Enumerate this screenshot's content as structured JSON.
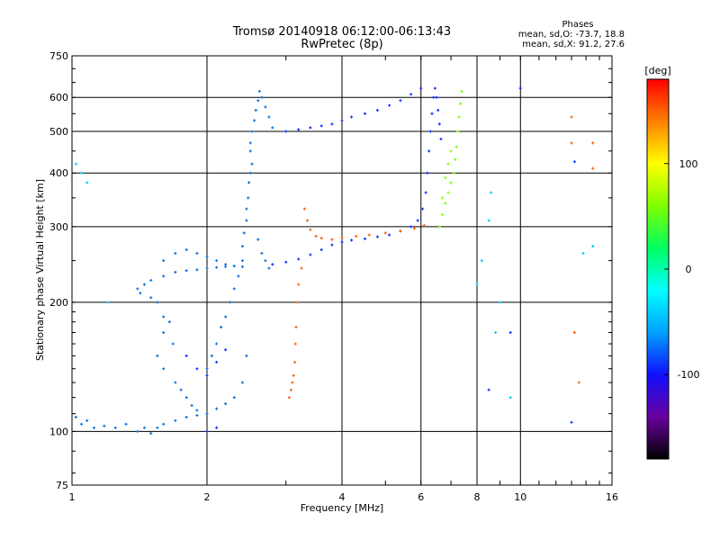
{
  "header": {
    "title_line1": "Tromsø 20140918 06:12:00-06:13:43",
    "title_line2": "RwPretec (8p)",
    "phases_title": "Phases",
    "phases_o": "mean, sd,O: -73.7, 18.8",
    "phases_x": "mean, sd,X:  91.2, 27.6"
  },
  "chart_data": {
    "type": "scatter",
    "title": "Tromsø 20140918 06:12:00-06:13:43",
    "subtitle": "RwPretec (8p)",
    "xlabel": "Frequency [MHz]",
    "ylabel": "Stationary phase Virtual Height [km]",
    "x_scale": "log",
    "y_scale": "log",
    "xlim": [
      1,
      16
    ],
    "ylim": [
      75,
      750
    ],
    "x_ticks": [
      1,
      2,
      4,
      6,
      8,
      10,
      16
    ],
    "x_tick_labels": [
      "1",
      "2",
      "4",
      "6",
      "8",
      "10",
      "16"
    ],
    "y_ticks": [
      75,
      100,
      200,
      300,
      400,
      500,
      600,
      750
    ],
    "y_tick_labels": [
      "75",
      "100",
      "200",
      "300",
      "400",
      "500",
      "600",
      "750"
    ],
    "grid": true,
    "colorbar": {
      "label": "[deg]",
      "range": [
        -180,
        180
      ],
      "ticks": [
        100,
        0,
        -100
      ],
      "tick_labels": [
        "100",
        "0",
        "-100"
      ],
      "colors": [
        "#000000",
        "#6a00a0",
        "#1010ff",
        "#00a0ff",
        "#00ffff",
        "#00ff60",
        "#80ff00",
        "#ffff00",
        "#ff8000",
        "#ff0000"
      ]
    },
    "series": [
      {
        "color": "#0a70e0",
        "points": [
          [
            1.02,
            108
          ],
          [
            1.05,
            104
          ],
          [
            1.08,
            106
          ],
          [
            1.12,
            102
          ],
          [
            1.18,
            103
          ],
          [
            1.25,
            102
          ],
          [
            1.32,
            104
          ],
          [
            1.4,
            100
          ],
          [
            1.45,
            102
          ],
          [
            1.5,
            99
          ],
          [
            1.55,
            102
          ],
          [
            1.6,
            104
          ],
          [
            1.7,
            106
          ],
          [
            1.8,
            108
          ],
          [
            1.9,
            109
          ],
          [
            2.0,
            110
          ],
          [
            2.1,
            113
          ],
          [
            2.2,
            116
          ],
          [
            2.3,
            120
          ],
          [
            2.4,
            130
          ],
          [
            2.45,
            150
          ],
          [
            1.45,
            220
          ],
          [
            1.5,
            225
          ],
          [
            1.6,
            230
          ],
          [
            1.7,
            235
          ],
          [
            1.8,
            237
          ],
          [
            1.9,
            238
          ],
          [
            2.0,
            240
          ],
          [
            2.1,
            241
          ],
          [
            2.2,
            242
          ],
          [
            2.3,
            243
          ],
          [
            2.4,
            242
          ],
          [
            1.4,
            215
          ],
          [
            1.42,
            210
          ],
          [
            1.5,
            205
          ],
          [
            1.55,
            200
          ],
          [
            1.6,
            185
          ],
          [
            1.65,
            180
          ],
          [
            1.6,
            170
          ],
          [
            1.68,
            160
          ],
          [
            1.55,
            150
          ],
          [
            1.6,
            140
          ],
          [
            1.7,
            130
          ],
          [
            1.75,
            125
          ],
          [
            1.8,
            120
          ],
          [
            1.85,
            115
          ],
          [
            1.9,
            112
          ],
          [
            2.0,
            140
          ],
          [
            2.05,
            150
          ],
          [
            2.1,
            160
          ],
          [
            2.15,
            175
          ],
          [
            2.2,
            185
          ],
          [
            2.25,
            200
          ],
          [
            2.3,
            215
          ],
          [
            2.35,
            230
          ],
          [
            2.4,
            250
          ],
          [
            2.4,
            270
          ],
          [
            2.42,
            290
          ],
          [
            2.45,
            310
          ],
          [
            2.45,
            330
          ],
          [
            2.47,
            350
          ],
          [
            2.48,
            380
          ],
          [
            2.5,
            400
          ],
          [
            2.52,
            420
          ],
          [
            2.5,
            450
          ],
          [
            2.5,
            470
          ],
          [
            2.52,
            500
          ],
          [
            2.55,
            530
          ],
          [
            2.57,
            560
          ],
          [
            2.6,
            590
          ],
          [
            2.62,
            620
          ],
          [
            2.65,
            600
          ],
          [
            2.7,
            570
          ],
          [
            2.75,
            540
          ],
          [
            2.8,
            510
          ],
          [
            2.6,
            280
          ],
          [
            2.65,
            260
          ],
          [
            2.7,
            250
          ],
          [
            2.75,
            240
          ],
          [
            1.6,
            250
          ],
          [
            1.7,
            260
          ],
          [
            1.8,
            265
          ],
          [
            1.9,
            260
          ],
          [
            2.0,
            255
          ],
          [
            2.1,
            250
          ],
          [
            2.2,
            245
          ]
        ]
      },
      {
        "color": "#1030ff",
        "points": [
          [
            2.8,
            245
          ],
          [
            3.0,
            248
          ],
          [
            3.2,
            252
          ],
          [
            3.4,
            258
          ],
          [
            3.6,
            265
          ],
          [
            3.8,
            272
          ],
          [
            4.0,
            276
          ],
          [
            4.2,
            279
          ],
          [
            4.5,
            281
          ],
          [
            4.8,
            284
          ],
          [
            5.1,
            287
          ],
          [
            5.4,
            293
          ],
          [
            5.7,
            300
          ],
          [
            5.9,
            310
          ],
          [
            6.05,
            330
          ],
          [
            6.15,
            360
          ],
          [
            6.2,
            400
          ],
          [
            6.25,
            450
          ],
          [
            6.3,
            500
          ],
          [
            6.35,
            550
          ],
          [
            6.4,
            600
          ],
          [
            6.45,
            630
          ],
          [
            6.5,
            600
          ],
          [
            6.55,
            560
          ],
          [
            6.6,
            520
          ],
          [
            6.65,
            480
          ],
          [
            3.0,
            500
          ],
          [
            3.2,
            505
          ],
          [
            3.4,
            510
          ],
          [
            3.6,
            515
          ],
          [
            3.8,
            520
          ],
          [
            4.0,
            530
          ],
          [
            4.2,
            540
          ],
          [
            4.5,
            550
          ],
          [
            4.8,
            560
          ],
          [
            5.1,
            575
          ],
          [
            5.4,
            590
          ],
          [
            5.7,
            610
          ],
          [
            6.0,
            630
          ],
          [
            1.8,
            150
          ],
          [
            1.9,
            140
          ],
          [
            2.0,
            135
          ],
          [
            2.1,
            145
          ],
          [
            2.2,
            155
          ],
          [
            2.0,
            100
          ],
          [
            2.1,
            102
          ],
          [
            9.5,
            170
          ],
          [
            8.5,
            125
          ],
          [
            13.0,
            105
          ],
          [
            13.2,
            425
          ],
          [
            10.0,
            630
          ]
        ]
      },
      {
        "color": "#ff6000",
        "points": [
          [
            3.05,
            120
          ],
          [
            3.08,
            125
          ],
          [
            3.1,
            130
          ],
          [
            3.12,
            135
          ],
          [
            3.14,
            145
          ],
          [
            3.15,
            160
          ],
          [
            3.16,
            175
          ],
          [
            3.18,
            200
          ],
          [
            3.2,
            220
          ],
          [
            3.25,
            240
          ],
          [
            3.3,
            330
          ],
          [
            3.35,
            310
          ],
          [
            3.4,
            295
          ],
          [
            3.5,
            285
          ],
          [
            3.6,
            282
          ],
          [
            3.8,
            280
          ],
          [
            4.0,
            283
          ],
          [
            4.3,
            285
          ],
          [
            4.6,
            287
          ],
          [
            5.0,
            290
          ],
          [
            5.4,
            293
          ],
          [
            5.8,
            297
          ],
          [
            6.1,
            302
          ],
          [
            13.2,
            170
          ],
          [
            13.5,
            130
          ],
          [
            14.5,
            410
          ],
          [
            14.5,
            470
          ],
          [
            13.0,
            470
          ],
          [
            13.0,
            540
          ]
        ]
      },
      {
        "color": "#80ff00",
        "points": [
          [
            6.6,
            300
          ],
          [
            6.7,
            320
          ],
          [
            6.8,
            340
          ],
          [
            6.9,
            360
          ],
          [
            7.0,
            380
          ],
          [
            7.1,
            400
          ],
          [
            7.15,
            430
          ],
          [
            7.2,
            460
          ],
          [
            7.25,
            500
          ],
          [
            7.3,
            540
          ],
          [
            7.35,
            580
          ],
          [
            7.4,
            620
          ],
          [
            6.8,
            390
          ],
          [
            6.9,
            420
          ],
          [
            7.0,
            450
          ],
          [
            6.7,
            350
          ]
        ]
      },
      {
        "color": "#00c8ff",
        "points": [
          [
            1.02,
            420
          ],
          [
            1.05,
            400
          ],
          [
            1.08,
            380
          ],
          [
            1.2,
            200
          ],
          [
            8.0,
            220
          ],
          [
            8.2,
            250
          ],
          [
            8.5,
            310
          ],
          [
            8.6,
            360
          ],
          [
            8.8,
            170
          ],
          [
            9.0,
            200
          ],
          [
            9.5,
            120
          ],
          [
            14.5,
            270
          ],
          [
            13.8,
            260
          ]
        ]
      }
    ]
  }
}
